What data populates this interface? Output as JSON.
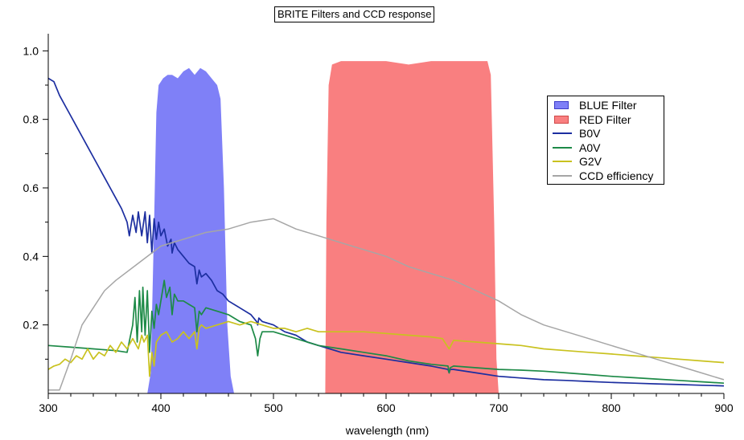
{
  "chart_data": {
    "type": "area",
    "title": "BRITE Filters and CCD response",
    "xlabel": "wavelength (nm)",
    "ylabel": "",
    "xlim": [
      300,
      900
    ],
    "ylim": [
      0,
      1.05
    ],
    "x_ticks": [
      300,
      400,
      500,
      600,
      700,
      800,
      900
    ],
    "y_ticks": [
      0.2,
      0.4,
      0.6,
      0.8,
      1.0
    ],
    "x_tick_labels": [
      "300",
      "400",
      "500",
      "600",
      "700",
      "800",
      "900"
    ],
    "y_tick_labels": [
      "0.2",
      "0.4",
      "0.6",
      "0.8",
      "1.0"
    ],
    "grid": false,
    "legend_position": "top-right",
    "series": [
      {
        "name": "BLUE Filter",
        "kind": "filled-area",
        "color": "#7f80f7",
        "x": [
          388,
          391,
          394,
          396,
          398,
          402,
          406,
          410,
          415,
          420,
          425,
          430,
          435,
          440,
          445,
          450,
          453,
          456,
          459,
          462,
          465
        ],
        "y": [
          0.0,
          0.06,
          0.5,
          0.82,
          0.9,
          0.92,
          0.93,
          0.93,
          0.92,
          0.94,
          0.95,
          0.93,
          0.95,
          0.94,
          0.92,
          0.9,
          0.86,
          0.6,
          0.2,
          0.05,
          0.0
        ]
      },
      {
        "name": "RED Filter",
        "kind": "filled-area",
        "color": "#f97f80",
        "x": [
          546,
          547,
          549,
          552,
          560,
          580,
          600,
          620,
          640,
          660,
          680,
          690,
          693,
          696,
          698,
          700
        ],
        "y": [
          0.0,
          0.5,
          0.9,
          0.96,
          0.97,
          0.97,
          0.97,
          0.96,
          0.97,
          0.97,
          0.97,
          0.97,
          0.93,
          0.5,
          0.1,
          0.0
        ]
      },
      {
        "name": "B0V",
        "color": "#1c2ea0",
        "x": [
          300,
          305,
          310,
          315,
          320,
          325,
          330,
          335,
          340,
          345,
          350,
          355,
          360,
          365,
          370,
          372,
          375,
          378,
          380,
          383,
          386,
          388,
          390,
          392,
          394,
          396,
          398,
          400,
          403,
          406,
          409,
          410,
          412,
          415,
          420,
          425,
          430,
          432,
          434,
          436,
          440,
          445,
          450,
          455,
          460,
          470,
          480,
          485,
          486,
          487,
          490,
          500,
          510,
          520,
          530,
          540,
          550,
          560,
          580,
          600,
          620,
          640,
          655,
          656,
          657,
          660,
          680,
          700,
          720,
          740,
          760,
          780,
          800,
          820,
          840,
          860,
          880,
          900
        ],
        "y": [
          0.92,
          0.91,
          0.87,
          0.84,
          0.81,
          0.78,
          0.75,
          0.72,
          0.69,
          0.66,
          0.63,
          0.6,
          0.57,
          0.54,
          0.5,
          0.46,
          0.52,
          0.47,
          0.53,
          0.46,
          0.53,
          0.44,
          0.52,
          0.41,
          0.51,
          0.45,
          0.5,
          0.46,
          0.48,
          0.43,
          0.45,
          0.41,
          0.44,
          0.42,
          0.4,
          0.38,
          0.37,
          0.32,
          0.36,
          0.34,
          0.35,
          0.33,
          0.3,
          0.29,
          0.27,
          0.25,
          0.23,
          0.21,
          0.2,
          0.22,
          0.21,
          0.2,
          0.18,
          0.17,
          0.15,
          0.14,
          0.13,
          0.12,
          0.11,
          0.1,
          0.09,
          0.08,
          0.07,
          0.06,
          0.07,
          0.07,
          0.06,
          0.05,
          0.045,
          0.04,
          0.038,
          0.035,
          0.032,
          0.03,
          0.028,
          0.026,
          0.024,
          0.022
        ]
      },
      {
        "name": "A0V",
        "color": "#1d8a47",
        "x": [
          300,
          320,
          340,
          360,
          370,
          375,
          377,
          379,
          381,
          383,
          384,
          386,
          388,
          390,
          392,
          394,
          396,
          398,
          400,
          403,
          405,
          408,
          410,
          412,
          415,
          420,
          425,
          430,
          432,
          434,
          436,
          440,
          450,
          460,
          470,
          480,
          484,
          486,
          488,
          490,
          500,
          520,
          540,
          560,
          580,
          600,
          620,
          640,
          655,
          656,
          657,
          660,
          680,
          700,
          720,
          740,
          760,
          780,
          800,
          820,
          840,
          860,
          880,
          900
        ],
        "y": [
          0.14,
          0.135,
          0.13,
          0.125,
          0.12,
          0.2,
          0.28,
          0.15,
          0.3,
          0.18,
          0.31,
          0.17,
          0.3,
          0.12,
          0.24,
          0.19,
          0.26,
          0.23,
          0.27,
          0.33,
          0.28,
          0.31,
          0.23,
          0.29,
          0.27,
          0.27,
          0.26,
          0.25,
          0.18,
          0.24,
          0.23,
          0.25,
          0.24,
          0.23,
          0.21,
          0.2,
          0.16,
          0.11,
          0.16,
          0.18,
          0.18,
          0.16,
          0.14,
          0.13,
          0.12,
          0.11,
          0.095,
          0.085,
          0.08,
          0.06,
          0.075,
          0.08,
          0.075,
          0.07,
          0.068,
          0.065,
          0.06,
          0.055,
          0.05,
          0.046,
          0.042,
          0.038,
          0.034,
          0.03
        ]
      },
      {
        "name": "G2V",
        "color": "#c9c21f",
        "x": [
          300,
          305,
          310,
          315,
          320,
          325,
          330,
          335,
          340,
          345,
          350,
          355,
          360,
          365,
          370,
          375,
          380,
          383,
          385,
          388,
          390,
          392,
          394,
          396,
          400,
          405,
          410,
          415,
          420,
          425,
          430,
          432,
          434,
          436,
          440,
          450,
          460,
          470,
          480,
          490,
          500,
          510,
          520,
          530,
          540,
          550,
          560,
          580,
          600,
          620,
          640,
          650,
          656,
          660,
          680,
          700,
          720,
          740,
          760,
          780,
          800,
          820,
          840,
          860,
          880,
          900
        ],
        "y": [
          0.07,
          0.08,
          0.085,
          0.1,
          0.09,
          0.11,
          0.1,
          0.13,
          0.1,
          0.12,
          0.11,
          0.14,
          0.12,
          0.15,
          0.13,
          0.16,
          0.13,
          0.17,
          0.15,
          0.17,
          0.05,
          0.12,
          0.08,
          0.15,
          0.17,
          0.18,
          0.15,
          0.16,
          0.18,
          0.16,
          0.18,
          0.13,
          0.19,
          0.2,
          0.19,
          0.2,
          0.21,
          0.2,
          0.21,
          0.2,
          0.19,
          0.19,
          0.18,
          0.19,
          0.18,
          0.18,
          0.18,
          0.18,
          0.175,
          0.17,
          0.165,
          0.16,
          0.13,
          0.155,
          0.15,
          0.145,
          0.14,
          0.13,
          0.125,
          0.12,
          0.115,
          0.11,
          0.105,
          0.1,
          0.095,
          0.09
        ]
      },
      {
        "name": "CCD efficiency",
        "color": "#a6a6a6",
        "x": [
          300,
          310,
          320,
          330,
          340,
          350,
          360,
          380,
          400,
          420,
          440,
          460,
          480,
          500,
          520,
          540,
          560,
          580,
          600,
          620,
          640,
          660,
          680,
          700,
          720,
          740,
          760,
          780,
          800,
          820,
          840,
          860,
          880,
          900
        ],
        "y": [
          0.01,
          0.01,
          0.1,
          0.2,
          0.25,
          0.3,
          0.33,
          0.38,
          0.43,
          0.45,
          0.47,
          0.48,
          0.5,
          0.51,
          0.48,
          0.46,
          0.44,
          0.42,
          0.4,
          0.37,
          0.35,
          0.33,
          0.3,
          0.27,
          0.23,
          0.2,
          0.18,
          0.16,
          0.14,
          0.12,
          0.1,
          0.08,
          0.06,
          0.04
        ]
      }
    ]
  }
}
